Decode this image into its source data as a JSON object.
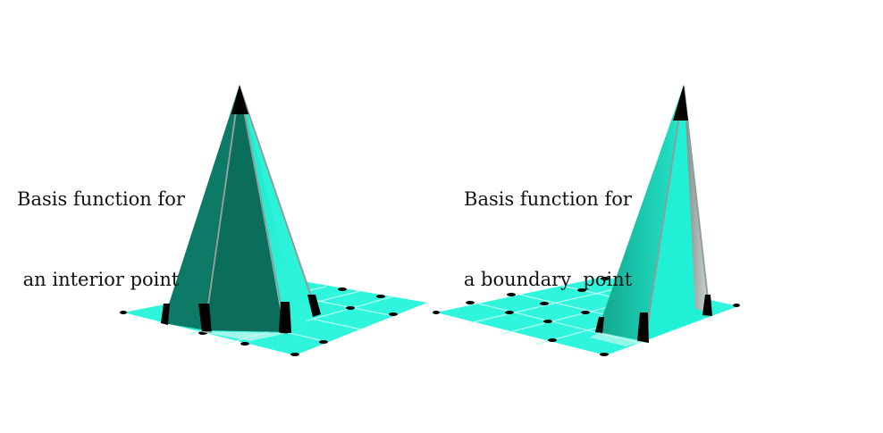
{
  "labels": {
    "interior": {
      "line1": "Basis function for",
      "line2": "an interior point"
    },
    "boundary": {
      "line1": "Basis function for",
      "line2": "a boundary  point"
    }
  },
  "colors": {
    "mesh": "#2ff5dc",
    "mesh_line": "#b5fbf0",
    "face_light": "#22f0d6",
    "face_dark": "#0b6e5d",
    "edge": "#a9b4b1",
    "node": "#000000"
  }
}
